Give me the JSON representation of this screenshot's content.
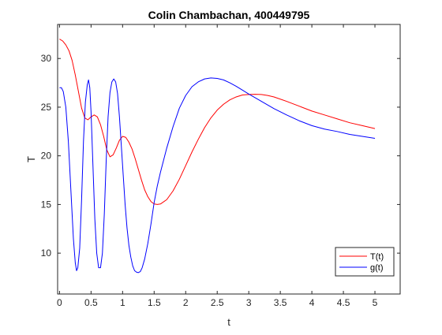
{
  "chart_data": {
    "type": "line",
    "title": "Colin Chambachan, 400449795",
    "xlabel": "t",
    "ylabel": "T",
    "xlim": [
      -0.03,
      5.4
    ],
    "ylim": [
      5.8,
      33.5
    ],
    "xticks": [
      0,
      0.5,
      1,
      1.5,
      2,
      2.5,
      3,
      3.5,
      4,
      4.5,
      5
    ],
    "xtick_labels": [
      "0",
      "0.5",
      "1",
      "1.5",
      "2",
      "2.5",
      "3",
      "3.5",
      "4",
      "4.5",
      "5"
    ],
    "yticks": [
      10,
      15,
      20,
      25,
      30
    ],
    "ytick_labels": [
      "10",
      "15",
      "20",
      "25",
      "30"
    ],
    "grid": false,
    "legend_position": "bottom-right",
    "series": [
      {
        "name": "T(t)",
        "color": "#ff0000",
        "points": [
          [
            0,
            32.0
          ],
          [
            0.05,
            31.8
          ],
          [
            0.1,
            31.4
          ],
          [
            0.15,
            30.8
          ],
          [
            0.2,
            29.8
          ],
          [
            0.25,
            28.3
          ],
          [
            0.3,
            26.6
          ],
          [
            0.35,
            24.9
          ],
          [
            0.4,
            23.9
          ],
          [
            0.45,
            23.7
          ],
          [
            0.5,
            24.0
          ],
          [
            0.55,
            24.2
          ],
          [
            0.6,
            24.0
          ],
          [
            0.65,
            23.2
          ],
          [
            0.7,
            22.0
          ],
          [
            0.75,
            20.6
          ],
          [
            0.8,
            19.9
          ],
          [
            0.85,
            20.1
          ],
          [
            0.9,
            20.8
          ],
          [
            0.95,
            21.6
          ],
          [
            1.0,
            22.0
          ],
          [
            1.05,
            21.9
          ],
          [
            1.1,
            21.4
          ],
          [
            1.15,
            20.7
          ],
          [
            1.2,
            19.7
          ],
          [
            1.25,
            18.6
          ],
          [
            1.3,
            17.5
          ],
          [
            1.35,
            16.5
          ],
          [
            1.4,
            15.8
          ],
          [
            1.45,
            15.3
          ],
          [
            1.5,
            15.05
          ],
          [
            1.55,
            15.0
          ],
          [
            1.6,
            15.05
          ],
          [
            1.7,
            15.5
          ],
          [
            1.8,
            16.4
          ],
          [
            1.9,
            17.6
          ],
          [
            2.0,
            19.0
          ],
          [
            2.1,
            20.4
          ],
          [
            2.2,
            21.7
          ],
          [
            2.3,
            22.9
          ],
          [
            2.4,
            23.9
          ],
          [
            2.5,
            24.7
          ],
          [
            2.6,
            25.3
          ],
          [
            2.7,
            25.75
          ],
          [
            2.8,
            26.05
          ],
          [
            2.9,
            26.25
          ],
          [
            3.0,
            26.3
          ],
          [
            3.1,
            26.32
          ],
          [
            3.2,
            26.3
          ],
          [
            3.3,
            26.2
          ],
          [
            3.4,
            26.05
          ],
          [
            3.6,
            25.6
          ],
          [
            3.8,
            25.1
          ],
          [
            4.0,
            24.6
          ],
          [
            4.2,
            24.2
          ],
          [
            4.4,
            23.8
          ],
          [
            4.6,
            23.4
          ],
          [
            4.8,
            23.1
          ],
          [
            5.0,
            22.8
          ]
        ]
      },
      {
        "name": "g(t)",
        "color": "#0000ff",
        "points": [
          [
            0,
            27.0
          ],
          [
            0.03,
            27.0
          ],
          [
            0.06,
            26.6
          ],
          [
            0.1,
            25.0
          ],
          [
            0.14,
            21.5
          ],
          [
            0.18,
            16.5
          ],
          [
            0.22,
            11.5
          ],
          [
            0.25,
            9.0
          ],
          [
            0.27,
            8.2
          ],
          [
            0.29,
            8.5
          ],
          [
            0.32,
            10.5
          ],
          [
            0.35,
            15.5
          ],
          [
            0.38,
            21.5
          ],
          [
            0.41,
            25.5
          ],
          [
            0.44,
            27.3
          ],
          [
            0.46,
            27.8
          ],
          [
            0.48,
            27.0
          ],
          [
            0.5,
            24.5
          ],
          [
            0.53,
            19.0
          ],
          [
            0.56,
            13.5
          ],
          [
            0.59,
            10.0
          ],
          [
            0.62,
            8.5
          ],
          [
            0.65,
            8.5
          ],
          [
            0.68,
            10.0
          ],
          [
            0.71,
            14.0
          ],
          [
            0.74,
            19.5
          ],
          [
            0.77,
            24.0
          ],
          [
            0.8,
            26.5
          ],
          [
            0.83,
            27.6
          ],
          [
            0.86,
            27.9
          ],
          [
            0.89,
            27.6
          ],
          [
            0.92,
            26.4
          ],
          [
            0.95,
            24.0
          ],
          [
            0.98,
            21.0
          ],
          [
            1.01,
            18.0
          ],
          [
            1.04,
            15.0
          ],
          [
            1.07,
            12.6
          ],
          [
            1.1,
            10.8
          ],
          [
            1.13,
            9.6
          ],
          [
            1.16,
            8.7
          ],
          [
            1.19,
            8.2
          ],
          [
            1.22,
            8.05
          ],
          [
            1.25,
            8.0
          ],
          [
            1.28,
            8.1
          ],
          [
            1.31,
            8.5
          ],
          [
            1.35,
            9.4
          ],
          [
            1.4,
            11.0
          ],
          [
            1.45,
            13.0
          ],
          [
            1.5,
            15.2
          ],
          [
            1.55,
            16.9
          ],
          [
            1.6,
            18.3
          ],
          [
            1.7,
            20.8
          ],
          [
            1.8,
            23.0
          ],
          [
            1.9,
            24.9
          ],
          [
            2.0,
            26.2
          ],
          [
            2.1,
            27.1
          ],
          [
            2.2,
            27.6
          ],
          [
            2.3,
            27.9
          ],
          [
            2.4,
            28.0
          ],
          [
            2.5,
            27.95
          ],
          [
            2.6,
            27.8
          ],
          [
            2.7,
            27.5
          ],
          [
            2.8,
            27.15
          ],
          [
            2.9,
            26.75
          ],
          [
            3.0,
            26.35
          ],
          [
            3.2,
            25.6
          ],
          [
            3.4,
            24.85
          ],
          [
            3.6,
            24.2
          ],
          [
            3.8,
            23.6
          ],
          [
            4.0,
            23.1
          ],
          [
            4.2,
            22.75
          ],
          [
            4.4,
            22.5
          ],
          [
            4.6,
            22.2
          ],
          [
            4.8,
            22.0
          ],
          [
            5.0,
            21.8
          ]
        ]
      }
    ]
  }
}
